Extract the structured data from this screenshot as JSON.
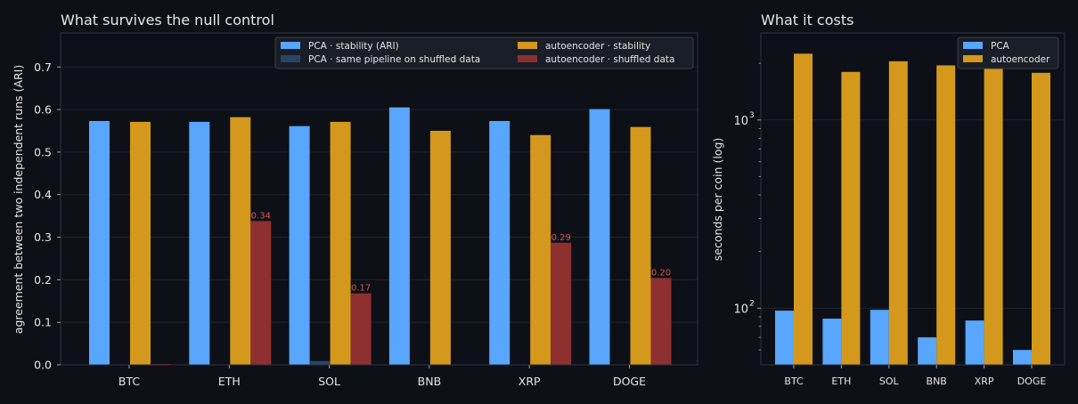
{
  "theme": {
    "background": "#0d1017",
    "axes_background": "#0d1017",
    "axes_border": "#2f333c",
    "grid": "#1e222a",
    "text": "#e6e6e6",
    "legend_background": "#1a1e26",
    "legend_border": "#3a3e47",
    "shuffled_label_color": "#e0504f"
  },
  "chart_data": [
    {
      "type": "bar",
      "title": "What survives the null control",
      "xlabel": "",
      "ylabel": "agreement between two independent runs (ARI)",
      "categories": [
        "BTC",
        "ETH",
        "SOL",
        "BNB",
        "XRP",
        "DOGE"
      ],
      "ylim": [
        0,
        0.78
      ],
      "yticks": [
        "0.0",
        "0.1",
        "0.2",
        "0.3",
        "0.4",
        "0.5",
        "0.6",
        "0.7"
      ],
      "grid": true,
      "legend_position": "top-right",
      "series": [
        {
          "name": "PCA · stability (ARI)",
          "color": "#58a6ff",
          "values": [
            0.573,
            0.571,
            0.561,
            0.605,
            0.573,
            0.601
          ]
        },
        {
          "name": "PCA · same pipeline on shuffled data",
          "color": "#2a4466",
          "values": [
            0,
            0,
            0.009,
            0,
            0,
            0
          ]
        },
        {
          "name": "autoencoder · stability",
          "color": "#d4991c",
          "values": [
            0.571,
            0.582,
            0.571,
            0.55,
            0.54,
            0.559
          ]
        },
        {
          "name": "autoencoder · shuffled data",
          "color": "#8e3030",
          "values": [
            0.002,
            0.338,
            0.168,
            0,
            0.287,
            0.204
          ]
        }
      ],
      "annotations": [
        {
          "category": "ETH",
          "text": "0.34",
          "value": 0.338
        },
        {
          "category": "SOL",
          "text": "0.17",
          "value": 0.168
        },
        {
          "category": "XRP",
          "text": "0.29",
          "value": 0.287
        },
        {
          "category": "DOGE",
          "text": "0.20",
          "value": 0.204
        }
      ]
    },
    {
      "type": "bar",
      "title": "What it costs",
      "xlabel": "",
      "ylabel": "seconds per coin (log)",
      "categories": [
        "BTC",
        "ETH",
        "SOL",
        "BNB",
        "XRP",
        "DOGE"
      ],
      "yscale": "log",
      "ylim": [
        50,
        2900
      ],
      "ytick_labels": [
        {
          "base": "10",
          "exp": "2",
          "value": 100
        },
        {
          "base": "10",
          "exp": "3",
          "value": 1000
        }
      ],
      "grid": true,
      "legend_position": "top-right",
      "series": [
        {
          "name": "PCA",
          "color": "#58a6ff",
          "values": [
            97,
            88,
            98,
            70,
            86,
            60
          ]
        },
        {
          "name": "autoencoder",
          "color": "#d4991c",
          "values": [
            2250,
            1800,
            2050,
            1950,
            1950,
            1780
          ]
        }
      ]
    }
  ]
}
